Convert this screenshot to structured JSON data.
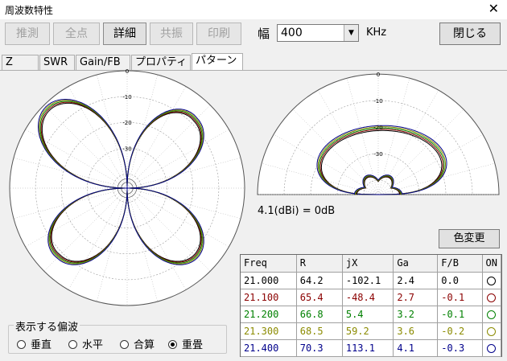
{
  "window": {
    "title": "周波数特性",
    "close_glyph": "✕"
  },
  "toolbar": {
    "buttons": [
      {
        "label": "推測",
        "enabled": false
      },
      {
        "label": "全点",
        "enabled": false
      },
      {
        "label": "詳細",
        "enabled": true
      },
      {
        "label": "共振",
        "enabled": false
      },
      {
        "label": "印刷",
        "enabled": false
      }
    ],
    "width_label": "幅",
    "width_value": "400",
    "unit": "KHz",
    "close_label": "閉じる"
  },
  "tabs": [
    {
      "label": "Z"
    },
    {
      "label": "SWR"
    },
    {
      "label": "Gain/FB"
    },
    {
      "label": "プロパティ"
    },
    {
      "label": "パターン",
      "active": true
    }
  ],
  "pattern": {
    "ring_labels": [
      "0",
      "-10",
      "-20",
      "-30"
    ],
    "reference_text": "4.1(dBi) = 0dB",
    "color_button_label": "色変更"
  },
  "table": {
    "headers": [
      "Freq",
      "R",
      "jX",
      "Ga",
      "F/B",
      "ON"
    ],
    "rows": [
      {
        "freq": "21.000",
        "r": "64.2",
        "jx": "-102.1",
        "ga": "2.4",
        "fb": "0.0",
        "color": "#000000"
      },
      {
        "freq": "21.100",
        "r": "65.4",
        "jx": "-48.4",
        "ga": "2.7",
        "fb": "-0.1",
        "color": "#8b0000"
      },
      {
        "freq": "21.200",
        "r": "66.8",
        "jx": "5.4",
        "ga": "3.2",
        "fb": "-0.1",
        "color": "#008000"
      },
      {
        "freq": "21.300",
        "r": "68.5",
        "jx": "59.2",
        "ga": "3.6",
        "fb": "-0.2",
        "color": "#8b8b00"
      },
      {
        "freq": "21.400",
        "r": "70.3",
        "jx": "113.1",
        "ga": "4.1",
        "fb": "-0.3",
        "color": "#00008b"
      }
    ]
  },
  "polarization": {
    "legend": "表示する偏波",
    "options": [
      {
        "label": "垂直",
        "selected": false
      },
      {
        "label": "水平",
        "selected": false
      },
      {
        "label": "合算",
        "selected": false
      },
      {
        "label": "重畳",
        "selected": true
      }
    ]
  }
}
